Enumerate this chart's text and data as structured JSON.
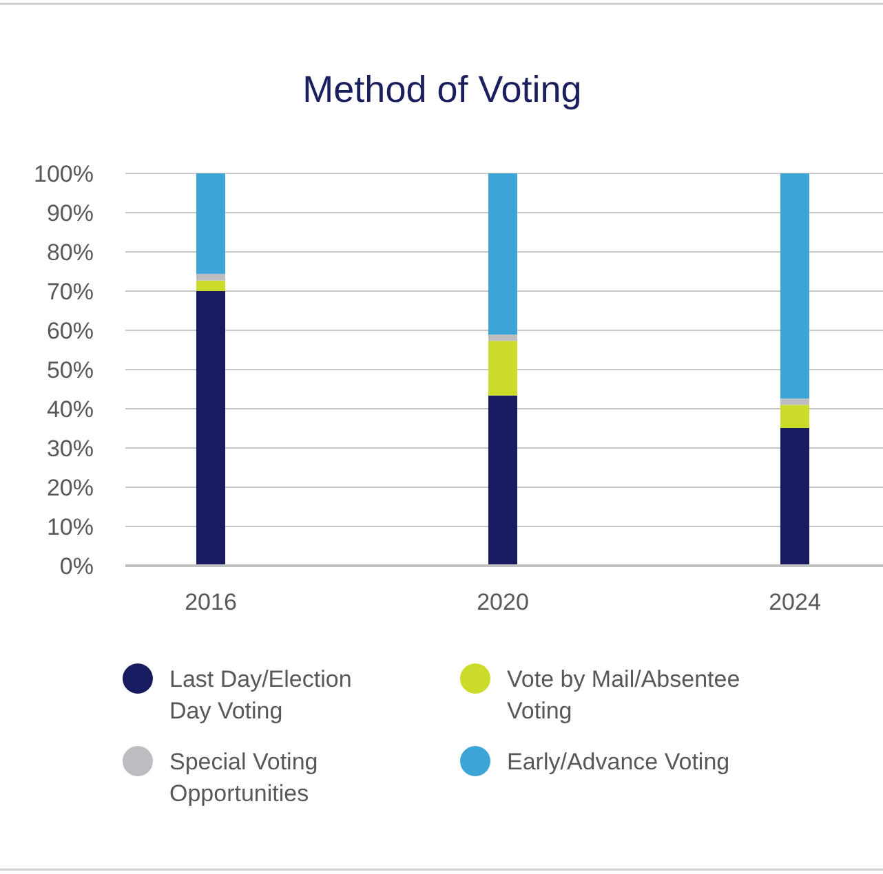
{
  "chart_data": {
    "type": "bar",
    "title": "Method of Voting",
    "categories": [
      "2016",
      "2020",
      "2024"
    ],
    "stacked": true,
    "ylim": [
      0,
      100
    ],
    "yticks": [
      {
        "value": 0,
        "label": "0%"
      },
      {
        "value": 10,
        "label": "10%"
      },
      {
        "value": 20,
        "label": "20%"
      },
      {
        "value": 30,
        "label": "30%"
      },
      {
        "value": 40,
        "label": "40%"
      },
      {
        "value": 50,
        "label": "50%"
      },
      {
        "value": 60,
        "label": "60%"
      },
      {
        "value": 70,
        "label": "70%"
      },
      {
        "value": 80,
        "label": "80%"
      },
      {
        "value": 90,
        "label": "90%"
      },
      {
        "value": 100,
        "label": "100%"
      }
    ],
    "grid": "y",
    "legend": "bottom",
    "series": [
      {
        "name": "Last Day/Election Day Voting",
        "color": "#191b61",
        "values": [
          70,
          43.4,
          35.1
        ]
      },
      {
        "name": "Vote by Mail/Absentee Voting",
        "color": "#cbdb2a",
        "values": [
          2.7,
          13.9,
          5.9
        ]
      },
      {
        "name": "Special Voting Opportunities",
        "color": "#bbbdc0",
        "values": [
          1.7,
          1.6,
          1.6
        ]
      },
      {
        "name": "Early/Advance Voting",
        "color": "#3ca4d6",
        "values": [
          25.6,
          41.1,
          57.4
        ]
      }
    ]
  }
}
